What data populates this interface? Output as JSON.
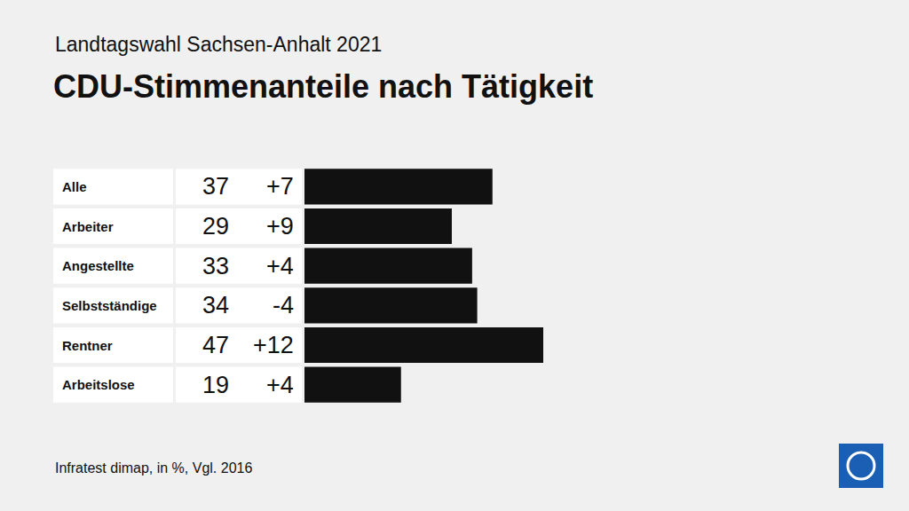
{
  "chart_data": {
    "type": "bar",
    "orientation": "horizontal",
    "subtitle": "Landtagswahl Sachsen-Anhalt 2021",
    "title": "CDU-Stimmenanteile nach Tätigkeit",
    "source": "Infratest dimap, in %, Vgl. 2016",
    "categories": [
      "Alle",
      "Arbeiter",
      "Angestellte",
      "Selbstständige",
      "Rentner",
      "Arbeitslose"
    ],
    "values": [
      37,
      29,
      33,
      34,
      47,
      19
    ],
    "changes": [
      7,
      9,
      4,
      -4,
      12,
      4
    ],
    "change_labels": [
      "+7",
      "+9",
      "+4",
      "-4",
      "+12",
      "+4"
    ],
    "color": "#111111",
    "xlim": [
      0,
      47
    ],
    "xticks": [],
    "data_labels": true,
    "tick_labels": false,
    "grid": false
  }
}
